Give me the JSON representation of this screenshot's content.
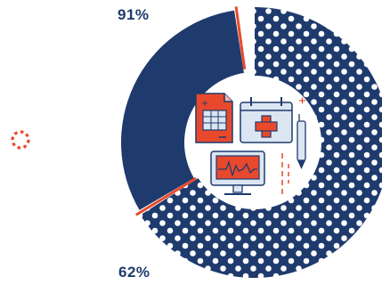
{
  "chart_data": {
    "type": "pie",
    "title": "",
    "series": [
      {
        "value": 91,
        "label": "91%"
      },
      {
        "value": 62,
        "label": "62%"
      }
    ]
  },
  "colors": {
    "navy": "#1f3a6d",
    "accent": "#e8492c",
    "dot": "#ffffff",
    "icon_fill": "#dbe6f2",
    "background": "#ffffff"
  },
  "icons": [
    "document-icon",
    "calendar-medical-icon",
    "pen-icon",
    "monitor-ecg-icon",
    "dotted-circle-icon"
  ]
}
